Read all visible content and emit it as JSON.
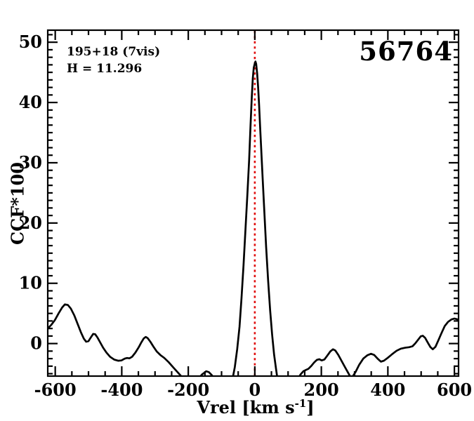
{
  "chart_data": {
    "type": "line",
    "title": "",
    "ylabel": "CCF*100",
    "xlabel_main": "Vrel [km s",
    "xlabel_sup": "-1",
    "xlabel_close": "]",
    "xlim": [
      -622.5,
      612.5
    ],
    "ylim": [
      -5.4,
      52.0
    ],
    "x_major_ticks": [
      -600,
      -400,
      -200,
      0,
      200,
      400,
      600
    ],
    "x_tick_labels": [
      "-600",
      "-400",
      "-200",
      "0",
      "200",
      "400",
      "600"
    ],
    "x_minor_step": 50,
    "y_major_ticks": [
      0,
      10,
      20,
      30,
      40,
      50
    ],
    "y_tick_labels": [
      "0",
      "10",
      "20",
      "30",
      "40",
      "50"
    ],
    "y_minor_step": 1.25,
    "grid": "off",
    "frame_color": "#000000",
    "vline": {
      "x": 0,
      "color": "#e01010",
      "style": "dotted"
    },
    "annotations": {
      "line1": "195+18 (7vis)",
      "line2": "H = 11.296",
      "corner_id": "56764"
    },
    "series": [
      {
        "name": "CCF",
        "color": "#000000",
        "points": [
          [
            -622,
            2.5
          ],
          [
            -612,
            3.1
          ],
          [
            -601,
            3.9
          ],
          [
            -590,
            5.0
          ],
          [
            -579,
            6.0
          ],
          [
            -571,
            6.5
          ],
          [
            -562,
            6.4
          ],
          [
            -553,
            5.8
          ],
          [
            -543,
            4.7
          ],
          [
            -533,
            3.3
          ],
          [
            -523,
            1.9
          ],
          [
            -514,
            0.8
          ],
          [
            -507,
            0.3
          ],
          [
            -500,
            0.4
          ],
          [
            -492,
            1.1
          ],
          [
            -486,
            1.6
          ],
          [
            -480,
            1.55
          ],
          [
            -473,
            1.0
          ],
          [
            -465,
            0.2
          ],
          [
            -456,
            -0.7
          ],
          [
            -446,
            -1.5
          ],
          [
            -435,
            -2.2
          ],
          [
            -423,
            -2.65
          ],
          [
            -411,
            -2.85
          ],
          [
            -401,
            -2.8
          ],
          [
            -391,
            -2.5
          ],
          [
            -384,
            -2.4
          ],
          [
            -377,
            -2.45
          ],
          [
            -369,
            -2.2
          ],
          [
            -359,
            -1.5
          ],
          [
            -349,
            -0.6
          ],
          [
            -341,
            0.2
          ],
          [
            -334,
            0.85
          ],
          [
            -328,
            1.1
          ],
          [
            -322,
            0.9
          ],
          [
            -314,
            0.3
          ],
          [
            -305,
            -0.5
          ],
          [
            -295,
            -1.3
          ],
          [
            -284,
            -1.9
          ],
          [
            -272,
            -2.4
          ],
          [
            -259,
            -3.1
          ],
          [
            -246,
            -3.9
          ],
          [
            -233,
            -4.7
          ],
          [
            -220,
            -5.5
          ],
          [
            -206,
            -6.2
          ],
          [
            -191,
            -6.6
          ],
          [
            -176,
            -6.1
          ],
          [
            -166,
            -5.6
          ],
          [
            -158,
            -5.1
          ],
          [
            -153,
            -4.9
          ],
          [
            -146,
            -4.6
          ],
          [
            -138,
            -4.75
          ],
          [
            -130,
            -5.2
          ],
          [
            -120,
            -5.9
          ],
          [
            -107,
            -6.7
          ],
          [
            -93,
            -7.2
          ],
          [
            -82,
            -7.0
          ],
          [
            -74,
            -6.6
          ],
          [
            -67,
            -5.9
          ],
          [
            -60,
            -3.9
          ],
          [
            -53,
            -0.9
          ],
          [
            -46,
            2.8
          ],
          [
            -40,
            7.5
          ],
          [
            -34,
            13.0
          ],
          [
            -28,
            19.0
          ],
          [
            -22,
            25.0
          ],
          [
            -17,
            30.5
          ],
          [
            -13,
            36.0
          ],
          [
            -9,
            41.0
          ],
          [
            -6,
            44.0
          ],
          [
            -3,
            45.8
          ],
          [
            0,
            46.5
          ],
          [
            2,
            46.8
          ],
          [
            4,
            46.4
          ],
          [
            7,
            44.8
          ],
          [
            10,
            42.5
          ],
          [
            13,
            39.5
          ],
          [
            16,
            36.0
          ],
          [
            20,
            31.5
          ],
          [
            24,
            27.0
          ],
          [
            29,
            21.5
          ],
          [
            34,
            16.0
          ],
          [
            40,
            10.5
          ],
          [
            46,
            5.5
          ],
          [
            52,
            1.5
          ],
          [
            58,
            -1.8
          ],
          [
            64,
            -4.3
          ],
          [
            70,
            -6.6
          ],
          [
            80,
            -8.0
          ],
          [
            95,
            -8.6
          ],
          [
            110,
            -8.0
          ],
          [
            122,
            -6.9
          ],
          [
            131,
            -5.7
          ],
          [
            138,
            -5.1
          ],
          [
            146,
            -4.6
          ],
          [
            153,
            -4.4
          ],
          [
            161,
            -4.2
          ],
          [
            170,
            -3.7
          ],
          [
            179,
            -3.1
          ],
          [
            187,
            -2.7
          ],
          [
            194,
            -2.6
          ],
          [
            201,
            -2.8
          ],
          [
            209,
            -2.65
          ],
          [
            218,
            -2.0
          ],
          [
            227,
            -1.3
          ],
          [
            235,
            -0.95
          ],
          [
            242,
            -1.15
          ],
          [
            251,
            -1.9
          ],
          [
            261,
            -2.9
          ],
          [
            271,
            -3.9
          ],
          [
            281,
            -4.9
          ],
          [
            288,
            -5.6
          ],
          [
            295,
            -5.4
          ],
          [
            303,
            -4.7
          ],
          [
            314,
            -3.5
          ],
          [
            326,
            -2.5
          ],
          [
            338,
            -1.95
          ],
          [
            349,
            -1.7
          ],
          [
            359,
            -1.9
          ],
          [
            369,
            -2.5
          ],
          [
            379,
            -3.0
          ],
          [
            388,
            -2.85
          ],
          [
            399,
            -2.4
          ],
          [
            412,
            -1.8
          ],
          [
            426,
            -1.2
          ],
          [
            439,
            -0.85
          ],
          [
            452,
            -0.7
          ],
          [
            464,
            -0.6
          ],
          [
            474,
            -0.45
          ],
          [
            482,
            0.0
          ],
          [
            492,
            0.7
          ],
          [
            499,
            1.2
          ],
          [
            505,
            1.3
          ],
          [
            512,
            0.95
          ],
          [
            520,
            0.15
          ],
          [
            528,
            -0.6
          ],
          [
            535,
            -0.95
          ],
          [
            543,
            -0.55
          ],
          [
            551,
            0.45
          ],
          [
            561,
            1.7
          ],
          [
            571,
            2.9
          ],
          [
            581,
            3.6
          ],
          [
            591,
            4.0
          ],
          [
            600,
            4.15
          ],
          [
            607,
            4.05
          ],
          [
            613,
            3.9
          ]
        ]
      }
    ]
  }
}
